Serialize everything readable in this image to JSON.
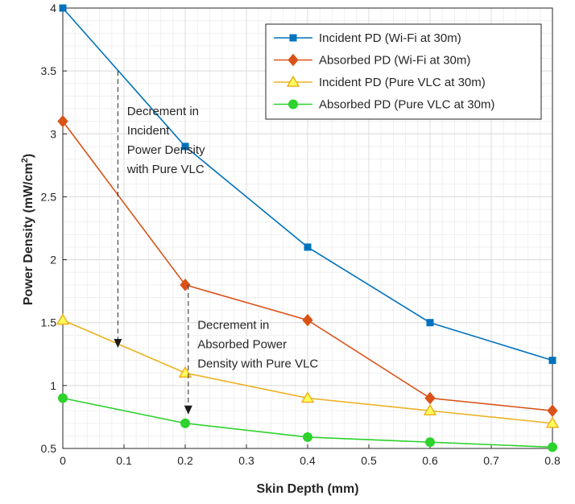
{
  "chart_data": {
    "type": "line",
    "xlabel": "Skin Depth (mm)",
    "ylabel": "Power Density (mW/cm",
    "ylabel_sup": "2",
    "ylabel_close": ")",
    "xlim": [
      0,
      0.8
    ],
    "ylim": [
      0.5,
      4
    ],
    "xticks": [
      "0",
      "0.1",
      "0.2",
      "0.3",
      "0.4",
      "0.5",
      "0.6",
      "0.7",
      "0.8"
    ],
    "yticks": [
      "0.5",
      "1",
      "1.5",
      "2",
      "2.5",
      "3",
      "3.5",
      "4"
    ],
    "grid": true,
    "legend_position": "top-right",
    "x": [
      0,
      0.2,
      0.4,
      0.6,
      0.8
    ],
    "series": [
      {
        "name": "Incident PD (Wi-Fi at 30m)",
        "values": [
          4.0,
          2.9,
          2.1,
          1.5,
          1.2
        ],
        "color": "#0072BD",
        "marker": "square"
      },
      {
        "name": "Absorbed PD (Wi-Fi at 30m)",
        "values": [
          3.1,
          1.8,
          1.52,
          0.9,
          0.8
        ],
        "color": "#D95319",
        "marker": "diamond"
      },
      {
        "name": "Incident PD (Pure VLC at 30m)",
        "values": [
          1.52,
          1.1,
          0.9,
          0.8,
          0.7
        ],
        "color": "#EDB120",
        "marker": "triangle"
      },
      {
        "name": "Absorbed PD (Pure VLC at 30m)",
        "values": [
          0.9,
          0.7,
          0.59,
          0.55,
          0.51
        ],
        "color": "#2DD22D",
        "marker": "circle"
      }
    ],
    "annotations": [
      {
        "lines": [
          "Decrement in",
          "Incident",
          "Power Density",
          "with Pure VLC"
        ],
        "arrow_x": 0.09,
        "arrow_from": 3.5,
        "arrow_to": 1.3,
        "text_x": 0.105,
        "text_y": 3.15
      },
      {
        "lines": [
          "Decrement in",
          "Absorbed Power",
          "Density with Pure VLC"
        ],
        "arrow_x": 0.205,
        "arrow_from": 1.8,
        "arrow_to": 0.77,
        "text_x": 0.22,
        "text_y": 1.45
      }
    ]
  }
}
